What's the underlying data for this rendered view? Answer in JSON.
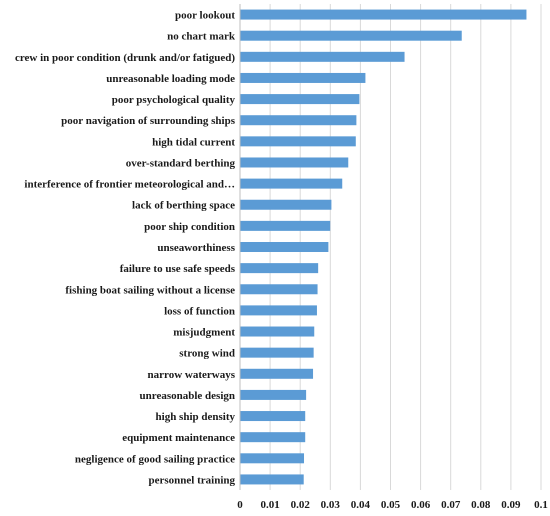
{
  "chart_data": {
    "type": "bar",
    "orientation": "horizontal",
    "categories": [
      "poor lookout",
      "no chart mark",
      "crew in poor condition (drunk and/or fatigued)",
      "unreasonable loading mode",
      "poor psychological quality",
      "poor navigation of surrounding ships",
      "high tidal current",
      "over-standard berthing",
      "interference of frontier meteorological and…",
      "lack of berthing space",
      "poor ship condition",
      "unseaworthiness",
      "failure to use safe speeds",
      "fishing boat sailing without a license",
      "loss of function",
      "misjudgment",
      "strong wind",
      "narrow waterways",
      "unreasonable design",
      "high ship density",
      "equipment maintenance",
      "negligence of good sailing practice",
      "personnel training"
    ],
    "values": [
      0.095,
      0.0735,
      0.0545,
      0.0415,
      0.0395,
      0.0385,
      0.0383,
      0.0358,
      0.0338,
      0.0302,
      0.0298,
      0.0292,
      0.0258,
      0.0256,
      0.0254,
      0.0245,
      0.0243,
      0.0241,
      0.0218,
      0.0215,
      0.0215,
      0.0211,
      0.021
    ],
    "xlim": [
      0,
      0.1
    ],
    "x_ticks": [
      "0",
      "0.01",
      "0.02",
      "0.03",
      "0.04",
      "0.05",
      "0.06",
      "0.07",
      "0.08",
      "0.09",
      "0.1"
    ],
    "title": "",
    "xlabel": "",
    "ylabel": "",
    "grid": "vertical",
    "bar_color": "#5b9bd5"
  }
}
